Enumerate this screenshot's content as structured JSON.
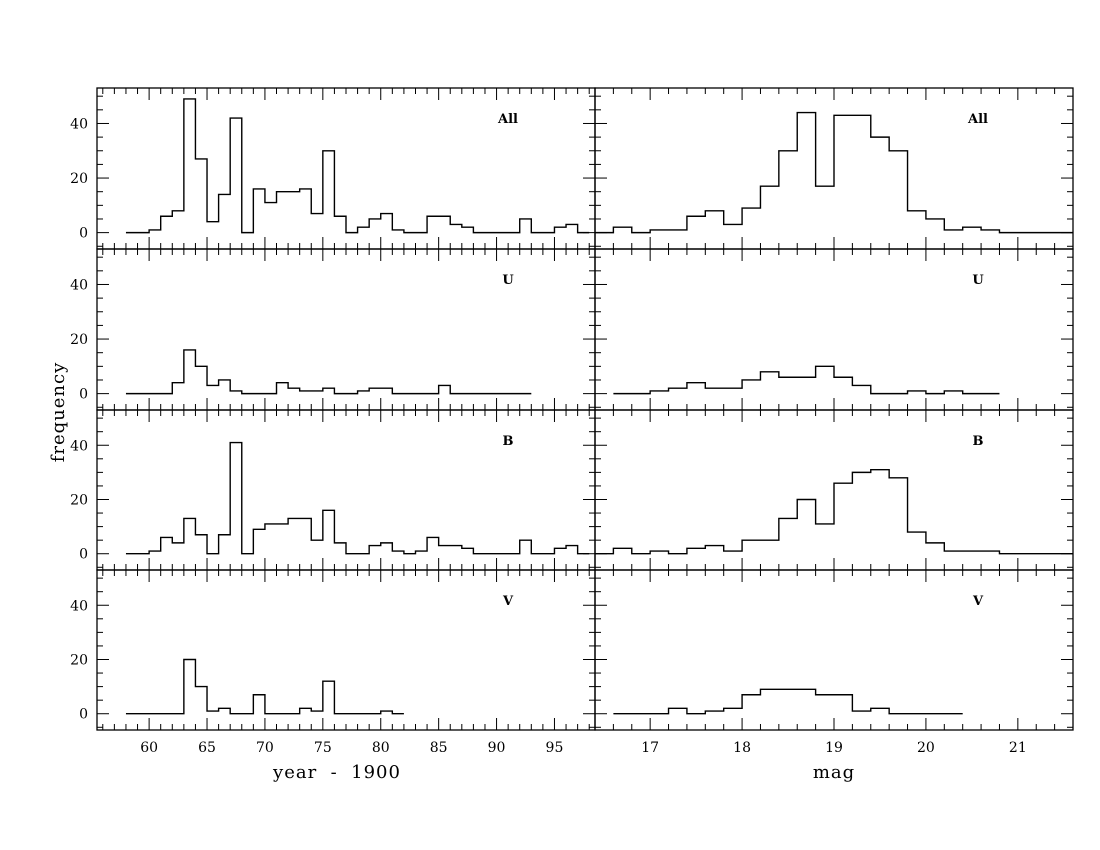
{
  "figure": {
    "ylabel": "frequency",
    "left_xlabel": "year  -  1900",
    "right_xlabel": "mag"
  },
  "chart_data": [
    {
      "type": "bar",
      "panel": "year-All",
      "label": "All",
      "bin_edges": [
        58,
        59,
        60,
        61,
        62,
        63,
        64,
        65,
        66,
        67,
        68,
        69,
        70,
        71,
        72,
        73,
        74,
        75,
        76,
        77,
        78,
        79,
        80,
        81,
        82,
        83,
        84,
        85,
        86,
        87,
        88,
        89,
        90,
        91,
        92,
        93,
        94,
        95,
        96,
        97,
        98
      ],
      "values": [
        0,
        0,
        1,
        6,
        8,
        49,
        27,
        4,
        14,
        42,
        0,
        16,
        11,
        15,
        15,
        16,
        7,
        30,
        6,
        0,
        2,
        5,
        7,
        1,
        0,
        0,
        6,
        6,
        3,
        2,
        0,
        0,
        0,
        0,
        5,
        0,
        0,
        2,
        3,
        0
      ],
      "xlim": [
        55.5,
        98.5
      ],
      "ylim": [
        -6,
        53
      ],
      "xticks": [
        60,
        65,
        70,
        75,
        80,
        85,
        90,
        95
      ],
      "yticks": [
        0,
        20,
        40
      ]
    },
    {
      "type": "bar",
      "panel": "year-U",
      "label": "U",
      "bin_edges": [
        58,
        59,
        60,
        61,
        62,
        63,
        64,
        65,
        66,
        67,
        68,
        69,
        70,
        71,
        72,
        73,
        74,
        75,
        76,
        77,
        78,
        79,
        80,
        81,
        82,
        83,
        84,
        85,
        86,
        87,
        88,
        89,
        90,
        91,
        92,
        93
      ],
      "values": [
        0,
        0,
        0,
        0,
        4,
        16,
        10,
        3,
        5,
        1,
        0,
        0,
        0,
        4,
        2,
        1,
        1,
        2,
        0,
        0,
        1,
        2,
        2,
        0,
        0,
        0,
        0,
        3,
        0,
        0,
        0,
        0,
        0,
        0,
        0
      ],
      "xlim": [
        55.5,
        98.5
      ],
      "ylim": [
        -6,
        53
      ],
      "xticks": [
        60,
        65,
        70,
        75,
        80,
        85,
        90,
        95
      ],
      "yticks": [
        0,
        20,
        40
      ]
    },
    {
      "type": "bar",
      "panel": "year-B",
      "label": "B",
      "bin_edges": [
        58,
        59,
        60,
        61,
        62,
        63,
        64,
        65,
        66,
        67,
        68,
        69,
        70,
        71,
        72,
        73,
        74,
        75,
        76,
        77,
        78,
        79,
        80,
        81,
        82,
        83,
        84,
        85,
        86,
        87,
        88,
        89,
        90,
        91,
        92,
        93,
        94,
        95,
        96,
        97,
        98
      ],
      "values": [
        0,
        0,
        1,
        6,
        4,
        13,
        7,
        0,
        7,
        41,
        0,
        9,
        11,
        11,
        13,
        13,
        5,
        16,
        4,
        0,
        0,
        3,
        4,
        1,
        0,
        1,
        6,
        3,
        3,
        2,
        0,
        0,
        0,
        0,
        5,
        0,
        0,
        2,
        3,
        0
      ],
      "xlim": [
        55.5,
        98.5
      ],
      "ylim": [
        -6,
        53
      ],
      "xticks": [
        60,
        65,
        70,
        75,
        80,
        85,
        90,
        95
      ],
      "yticks": [
        0,
        20,
        40
      ]
    },
    {
      "type": "bar",
      "panel": "year-V",
      "label": "V",
      "bin_edges": [
        58,
        59,
        60,
        61,
        62,
        63,
        64,
        65,
        66,
        67,
        68,
        69,
        70,
        71,
        72,
        73,
        74,
        75,
        76,
        77,
        78,
        79,
        80,
        81,
        82
      ],
      "values": [
        0,
        0,
        0,
        0,
        0,
        20,
        10,
        1,
        2,
        0,
        0,
        7,
        0,
        0,
        0,
        2,
        1,
        12,
        0,
        0,
        0,
        0,
        1,
        0
      ],
      "xlim": [
        55.5,
        98.5
      ],
      "ylim": [
        -6,
        53
      ],
      "xticks": [
        60,
        65,
        70,
        75,
        80,
        85,
        90,
        95
      ],
      "yticks": [
        0,
        20,
        40
      ]
    },
    {
      "type": "bar",
      "panel": "mag-All",
      "label": "All",
      "bin_edges": [
        16.4,
        16.6,
        16.8,
        17.0,
        17.2,
        17.4,
        17.6,
        17.8,
        18.0,
        18.2,
        18.4,
        18.6,
        18.8,
        19.0,
        19.2,
        19.4,
        19.6,
        19.8,
        20.0,
        20.2,
        20.4,
        20.6,
        20.8,
        21.0,
        21.2,
        21.4,
        21.6
      ],
      "values": [
        0,
        2,
        0,
        1,
        1,
        6,
        8,
        3,
        9,
        17,
        30,
        44,
        17,
        43,
        43,
        35,
        30,
        8,
        5,
        1,
        2,
        1,
        0,
        0,
        0,
        0
      ],
      "xlim": [
        16.4,
        21.6
      ],
      "ylim": [
        -6,
        53
      ],
      "xticks": [
        17,
        18,
        19,
        20,
        21
      ],
      "yticks": [
        0,
        20,
        40
      ]
    },
    {
      "type": "bar",
      "panel": "mag-U",
      "label": "U",
      "bin_edges": [
        16.6,
        16.8,
        17.0,
        17.2,
        17.4,
        17.6,
        17.8,
        18.0,
        18.2,
        18.4,
        18.6,
        18.8,
        19.0,
        19.2,
        19.4,
        19.6,
        19.8,
        20.0,
        20.2,
        20.4,
        20.6,
        20.8
      ],
      "values": [
        0,
        0,
        1,
        2,
        4,
        2,
        2,
        5,
        8,
        6,
        6,
        10,
        6,
        3,
        0,
        0,
        1,
        0,
        1,
        0,
        0
      ],
      "xlim": [
        16.4,
        21.6
      ],
      "ylim": [
        -6,
        53
      ],
      "xticks": [
        17,
        18,
        19,
        20,
        21
      ],
      "yticks": [
        0,
        20,
        40
      ]
    },
    {
      "type": "bar",
      "panel": "mag-B",
      "label": "B",
      "bin_edges": [
        16.4,
        16.6,
        16.8,
        17.0,
        17.2,
        17.4,
        17.6,
        17.8,
        18.0,
        18.2,
        18.4,
        18.6,
        18.8,
        19.0,
        19.2,
        19.4,
        19.6,
        19.8,
        20.0,
        20.2,
        20.4,
        20.6,
        20.8,
        21.0,
        21.2,
        21.4,
        21.6
      ],
      "values": [
        0,
        2,
        0,
        1,
        0,
        2,
        3,
        1,
        5,
        5,
        13,
        20,
        11,
        26,
        30,
        31,
        28,
        8,
        4,
        1,
        1,
        1,
        0,
        0,
        0,
        0
      ],
      "xlim": [
        16.4,
        21.6
      ],
      "ylim": [
        -6,
        53
      ],
      "xticks": [
        17,
        18,
        19,
        20,
        21
      ],
      "yticks": [
        0,
        20,
        40
      ]
    },
    {
      "type": "bar",
      "panel": "mag-V",
      "label": "V",
      "bin_edges": [
        16.6,
        16.8,
        17.0,
        17.2,
        17.4,
        17.6,
        17.8,
        18.0,
        18.2,
        18.4,
        18.6,
        18.8,
        19.0,
        19.2,
        19.4,
        19.6,
        19.8,
        20.0,
        20.2,
        20.4
      ],
      "values": [
        0,
        0,
        0,
        2,
        0,
        1,
        2,
        7,
        9,
        9,
        9,
        7,
        7,
        1,
        2,
        0,
        0,
        0,
        0
      ],
      "xlim": [
        16.4,
        21.6
      ],
      "ylim": [
        -6,
        53
      ],
      "xticks": [
        17,
        18,
        19,
        20,
        21
      ],
      "yticks": [
        0,
        20,
        40
      ]
    }
  ]
}
